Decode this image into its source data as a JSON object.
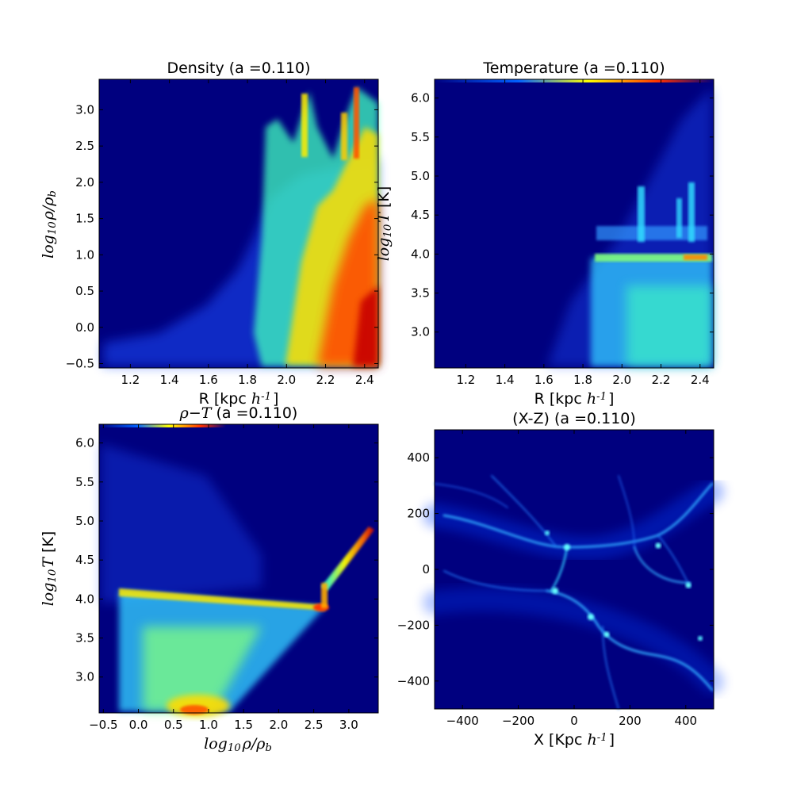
{
  "figure": {
    "background": "#ffffff",
    "plot_background": "#00007f"
  },
  "chart_data": [
    {
      "id": "density",
      "type": "heatmap",
      "title": "Density (a =0.110)",
      "xlabel": "R [kpc $h^{-1}$]",
      "ylabel": "$log_{10}\\rho/\\rho_b$",
      "xlim": [
        1.04,
        2.47
      ],
      "ylim": [
        -0.56,
        3.42
      ],
      "xticks": [
        1.2,
        1.4,
        1.6,
        1.8,
        2.0,
        2.2,
        2.4
      ],
      "xtick_labels": [
        "1.2",
        "1.4",
        "1.6",
        "1.8",
        "2.0",
        "2.2",
        "2.4"
      ],
      "yticks": [
        -0.5,
        0.0,
        0.5,
        1.0,
        1.5,
        2.0,
        2.5,
        3.0
      ],
      "ytick_labels": [
        "−0.5",
        "0.0",
        "0.5",
        "1.0",
        "1.5",
        "2.0",
        "2.5",
        "3.0"
      ],
      "colormap": "jet",
      "features": [
        {
          "kind": "region",
          "desc": "scatter tail",
          "x": [
            1.05,
            1.8
          ],
          "y": [
            -0.45,
            0.8
          ],
          "level": 0.2
        },
        {
          "kind": "region",
          "desc": "main body",
          "x": [
            1.8,
            2.47
          ],
          "y": [
            -0.5,
            2.9
          ],
          "level": 0.5
        },
        {
          "kind": "region",
          "desc": "dense core",
          "x": [
            2.25,
            2.47
          ],
          "y": [
            -0.4,
            1.8
          ],
          "level": 0.85
        },
        {
          "kind": "spikes",
          "x": [
            2.1,
            2.32,
            2.37
          ],
          "ymax": [
            3.25,
            2.95,
            3.3
          ],
          "level": 0.6
        }
      ]
    },
    {
      "id": "temperature",
      "type": "heatmap",
      "title": "Temperature (a =0.110)",
      "xlabel": "R [kpc $h^{-1}$]",
      "ylabel": "$log_{10}T$  [K]",
      "xlim": [
        1.04,
        2.47
      ],
      "ylim": [
        2.54,
        6.24
      ],
      "xticks": [
        1.2,
        1.4,
        1.6,
        1.8,
        2.0,
        2.2,
        2.4
      ],
      "xtick_labels": [
        "1.2",
        "1.4",
        "1.6",
        "1.8",
        "2.0",
        "2.2",
        "2.4"
      ],
      "yticks": [
        3.0,
        3.5,
        4.0,
        4.5,
        5.0,
        5.5,
        6.0
      ],
      "ytick_labels": [
        "3.0",
        "3.5",
        "4.0",
        "4.5",
        "5.0",
        "5.5",
        "6.0"
      ],
      "colormap": "jet",
      "features": [
        {
          "kind": "region",
          "desc": "cool gas block",
          "x": [
            1.85,
            2.47
          ],
          "y": [
            2.55,
            4.0
          ],
          "level": 0.4
        },
        {
          "kind": "band",
          "desc": "4.0 K line",
          "x": [
            1.88,
            2.47
          ],
          "y": 3.93,
          "level": 0.55
        },
        {
          "kind": "spikes",
          "x": [
            2.11,
            2.29,
            2.37
          ],
          "ymax": [
            4.8,
            4.55,
            4.9
          ],
          "level": 0.35
        }
      ]
    },
    {
      "id": "rho-t",
      "type": "heatmap",
      "title": "$\\rho$−$T$ (a =0.110)",
      "xlabel": "$log_{10}\\rho/\\rho_b$",
      "ylabel": "$log_{10}T$  [K]",
      "xlim": [
        -0.56,
        3.42
      ],
      "ylim": [
        2.54,
        6.24
      ],
      "xticks": [
        -0.5,
        0.0,
        0.5,
        1.0,
        1.5,
        2.0,
        2.5,
        3.0
      ],
      "xtick_labels": [
        "−0.5",
        "0.0",
        "0.5",
        "1.0",
        "1.5",
        "2.0",
        "2.5",
        "3.0"
      ],
      "yticks": [
        3.0,
        3.5,
        4.0,
        4.5,
        5.0,
        5.5,
        6.0
      ],
      "ytick_labels": [
        "3.0",
        "3.5",
        "4.0",
        "4.5",
        "5.0",
        "5.5",
        "6.0"
      ],
      "colormap": "jet",
      "features": [
        {
          "kind": "region",
          "desc": "triangle body",
          "x": [
            -0.3,
            2.7
          ],
          "y": [
            2.55,
            4.05
          ],
          "level": 0.45
        },
        {
          "kind": "band",
          "desc": "4.0 K line",
          "x": [
            -0.2,
            2.7
          ],
          "y": 3.95,
          "level": 0.6
        },
        {
          "kind": "branch",
          "desc": "hot branch",
          "x": [
            2.7,
            3.4
          ],
          "y": [
            4.1,
            4.9
          ],
          "level": 0.7
        }
      ]
    },
    {
      "id": "x-z",
      "type": "heatmap",
      "title": "(X-Z) (a =0.110)",
      "xlabel": "X [Kpc $h^{-1}$]",
      "ylabel": "",
      "xlim": [
        -500,
        500
      ],
      "ylim": [
        -500,
        500
      ],
      "xticks": [
        -400,
        -200,
        0,
        200,
        400
      ],
      "xtick_labels": [
        "−400",
        "−200",
        "0",
        "200",
        "400"
      ],
      "yticks": [
        -400,
        -200,
        0,
        200,
        400
      ],
      "ytick_labels": [
        "−400",
        "−200",
        "0",
        "200",
        "400"
      ],
      "colormap": "jet",
      "features": [
        {
          "kind": "filaments",
          "desc": "cosmic web filaments",
          "level": 0.3
        }
      ]
    }
  ]
}
